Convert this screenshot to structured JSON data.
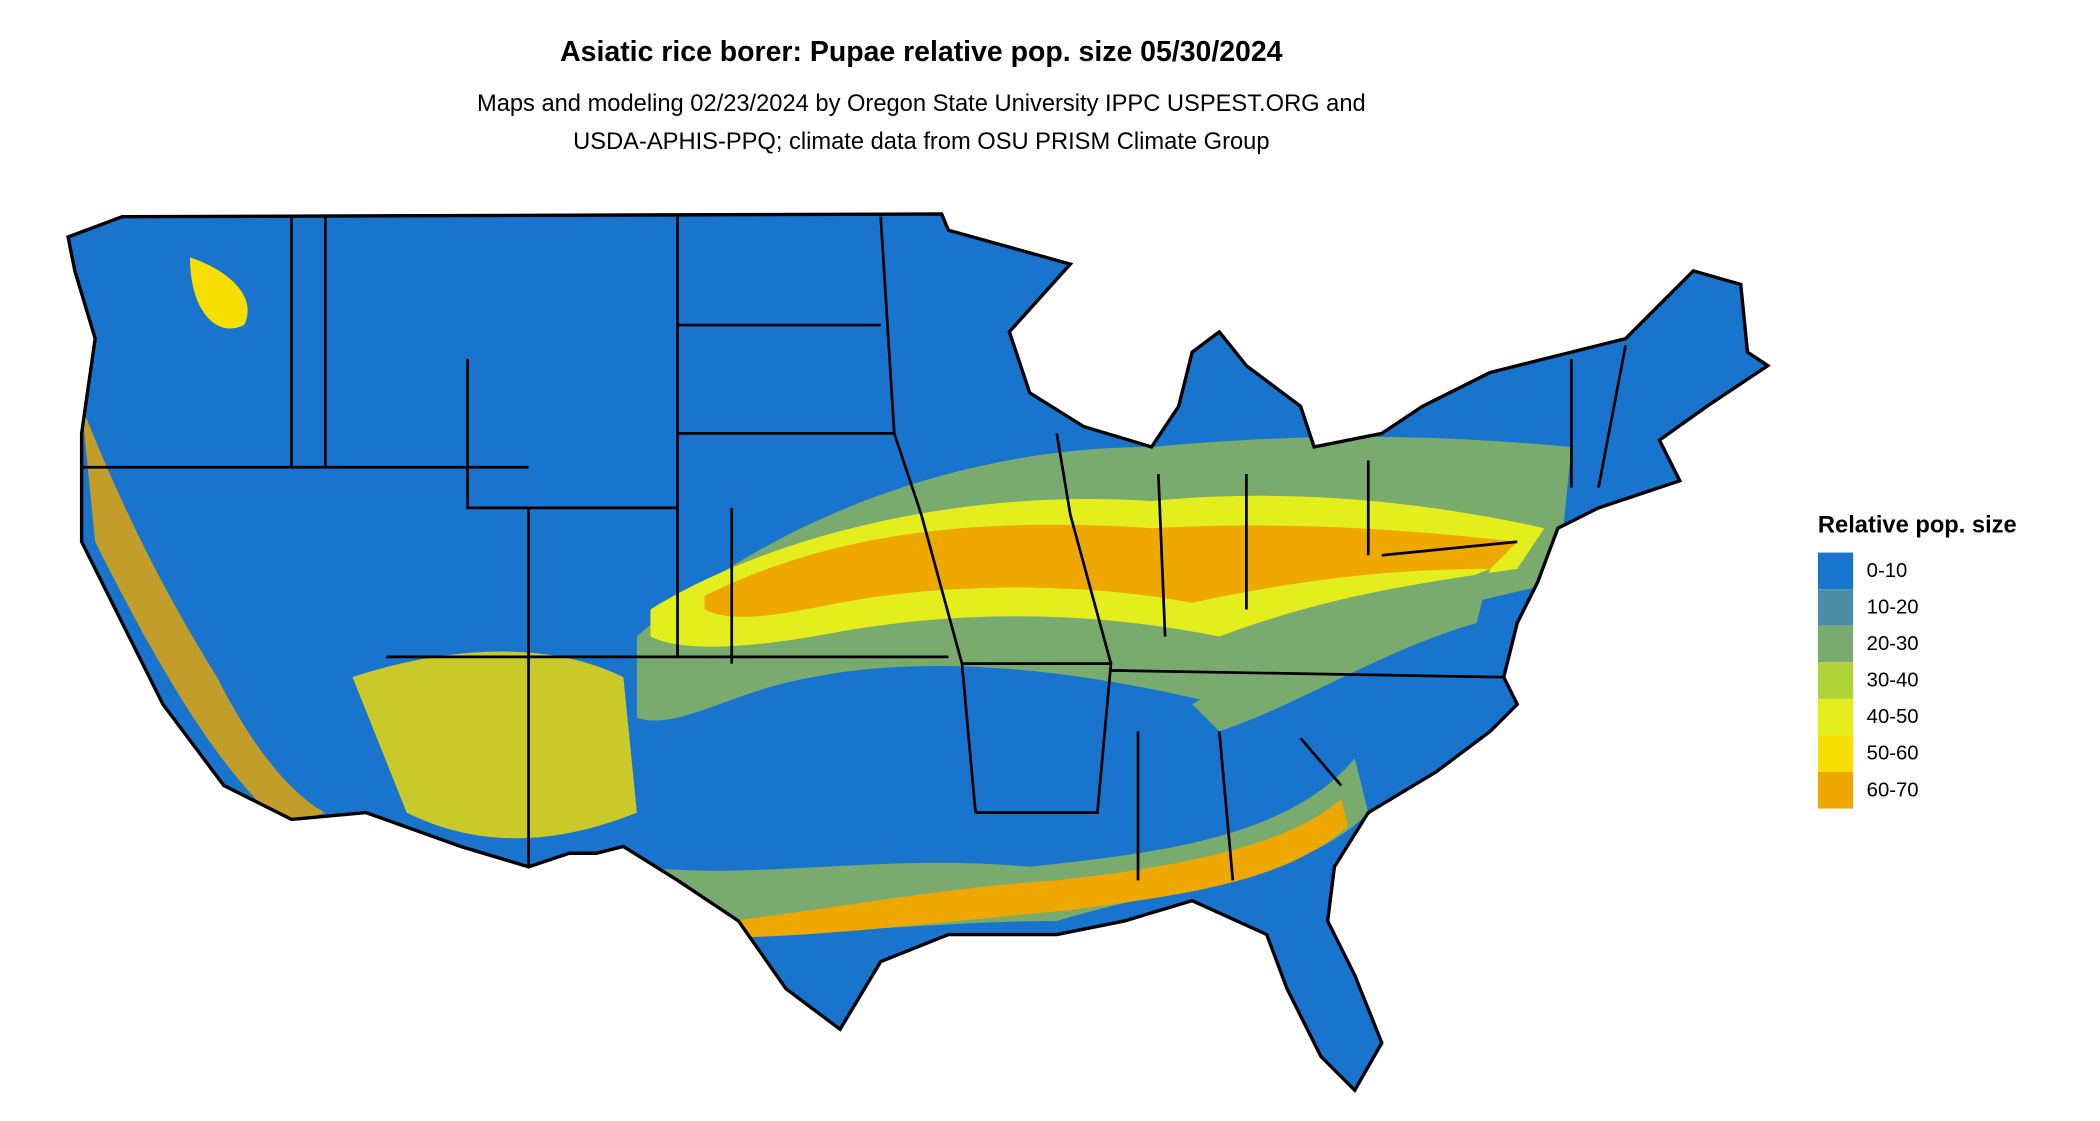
{
  "title": "Asiatic rice borer: Pupae relative pop. size 05/30/2024",
  "subtitle": [
    "Maps and modeling 02/23/2024 by Oregon State University IPPC USPEST.ORG and",
    "USDA-APHIS-PPQ; climate data from OSU PRISM Climate Group"
  ],
  "legend": {
    "title": "Relative pop. size",
    "items": [
      {
        "label": "0-10",
        "color": "#1874cd"
      },
      {
        "label": "10-20",
        "color": "#4a8fa6"
      },
      {
        "label": "20-30",
        "color": "#7aab6e"
      },
      {
        "label": "30-40",
        "color": "#b0d238"
      },
      {
        "label": "40-50",
        "color": "#e3ee1c"
      },
      {
        "label": "50-60",
        "color": "#f6de00"
      },
      {
        "label": "60-70",
        "color": "#eea800"
      }
    ]
  }
}
